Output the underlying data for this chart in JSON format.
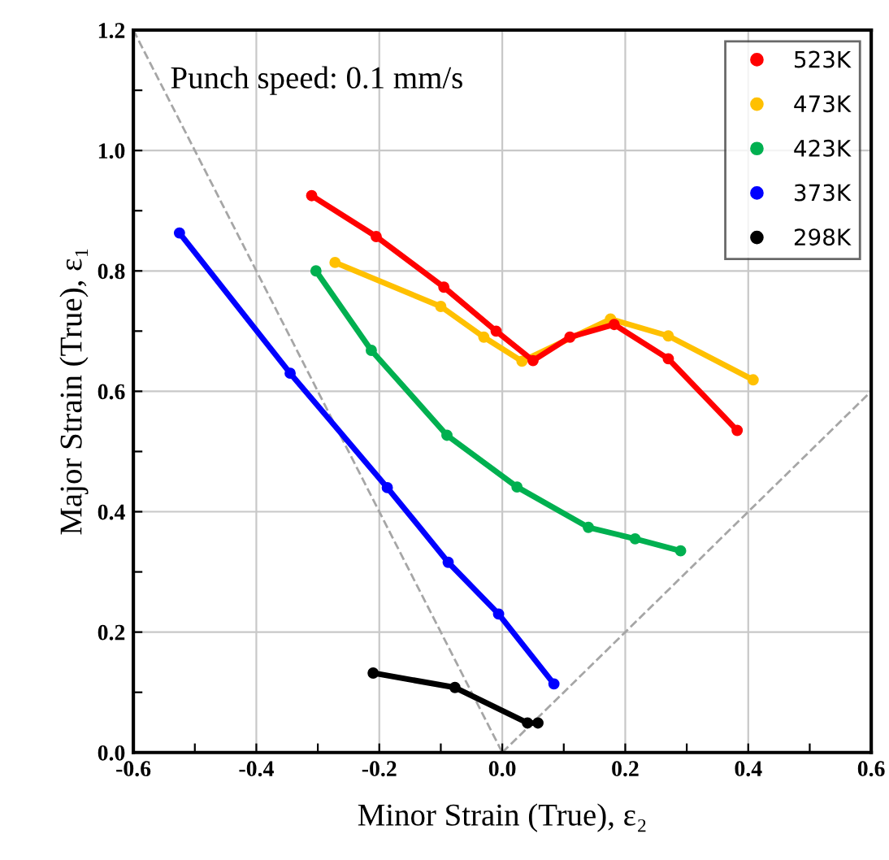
{
  "chart_data": {
    "type": "line",
    "xlabel": "Minor Strain (True), ε₂",
    "ylabel": "Major Strain (True), ε₁",
    "annotations": [
      "Punch speed: 0.1 mm/s"
    ],
    "xlim": [
      -0.6,
      0.6
    ],
    "ylim": [
      0.0,
      1.2
    ],
    "xticks": [
      -0.6,
      {
        "value": -0.5,
        "label": null
      },
      -0.4,
      {
        "value": -0.3,
        "label": null
      },
      -0.2,
      {
        "value": -0.1,
        "label": null
      },
      {
        "value": 0.0,
        "label": "0.0"
      },
      {
        "value": 0.1,
        "label": null
      },
      0.2,
      {
        "value": 0.3,
        "label": null
      },
      0.4,
      {
        "value": 0.5,
        "label": null
      },
      0.6
    ],
    "yticks": [
      {
        "value": 0.0,
        "label": "0.0"
      },
      {
        "value": 0.1,
        "label": null
      },
      0.2,
      {
        "value": 0.3,
        "label": null
      },
      0.4,
      {
        "value": 0.5,
        "label": null
      },
      0.6,
      {
        "value": 0.7,
        "label": null
      },
      0.8,
      {
        "value": 0.9,
        "label": null
      },
      {
        "value": 1.0,
        "label": "1.0"
      },
      {
        "value": 1.1,
        "label": null
      },
      1.2
    ],
    "grid": true,
    "legend": "top right",
    "marker": "circle",
    "series": [
      {
        "name": "523K",
        "color": "#ff0000",
        "x": [
          -0.31,
          -0.205,
          -0.095,
          -0.01,
          0.05,
          0.11,
          0.182,
          0.27,
          0.382
        ],
        "values": [
          0.925,
          0.857,
          0.773,
          0.7,
          0.651,
          0.69,
          0.711,
          0.654,
          0.535
        ]
      },
      {
        "name": "473K",
        "color": "#ffc000",
        "x": [
          -0.272,
          -0.1,
          -0.03,
          0.032,
          0.176,
          0.27,
          0.408
        ],
        "values": [
          0.814,
          0.741,
          0.69,
          0.65,
          0.72,
          0.692,
          0.619
        ]
      },
      {
        "name": "423K",
        "color": "#00b050",
        "x": [
          -0.303,
          -0.213,
          -0.09,
          0.024,
          0.14,
          0.216,
          0.29
        ],
        "values": [
          0.8,
          0.668,
          0.527,
          0.441,
          0.374,
          0.355,
          0.335
        ]
      },
      {
        "name": "373K",
        "color": "#0000ff",
        "x": [
          -0.525,
          -0.345,
          -0.187,
          -0.088,
          -0.006,
          0.084
        ],
        "values": [
          0.863,
          0.63,
          0.44,
          0.316,
          0.23,
          0.114
        ]
      },
      {
        "name": "298K",
        "color": "#000000",
        "x": [
          -0.21,
          -0.077,
          0.041,
          0.058
        ],
        "values": [
          0.132,
          0.108,
          0.049,
          0.049
        ]
      },
      {
        "color": "#a6a6a6",
        "line_style": "dashed",
        "marker": "none",
        "x": [
          -0.6,
          0.0
        ],
        "values": [
          1.2,
          0.0
        ]
      },
      {
        "color": "#a6a6a6",
        "line_style": "dashed",
        "marker": "none",
        "x": [
          0.0,
          0.6
        ],
        "values": [
          0.0,
          0.6
        ]
      }
    ]
  }
}
